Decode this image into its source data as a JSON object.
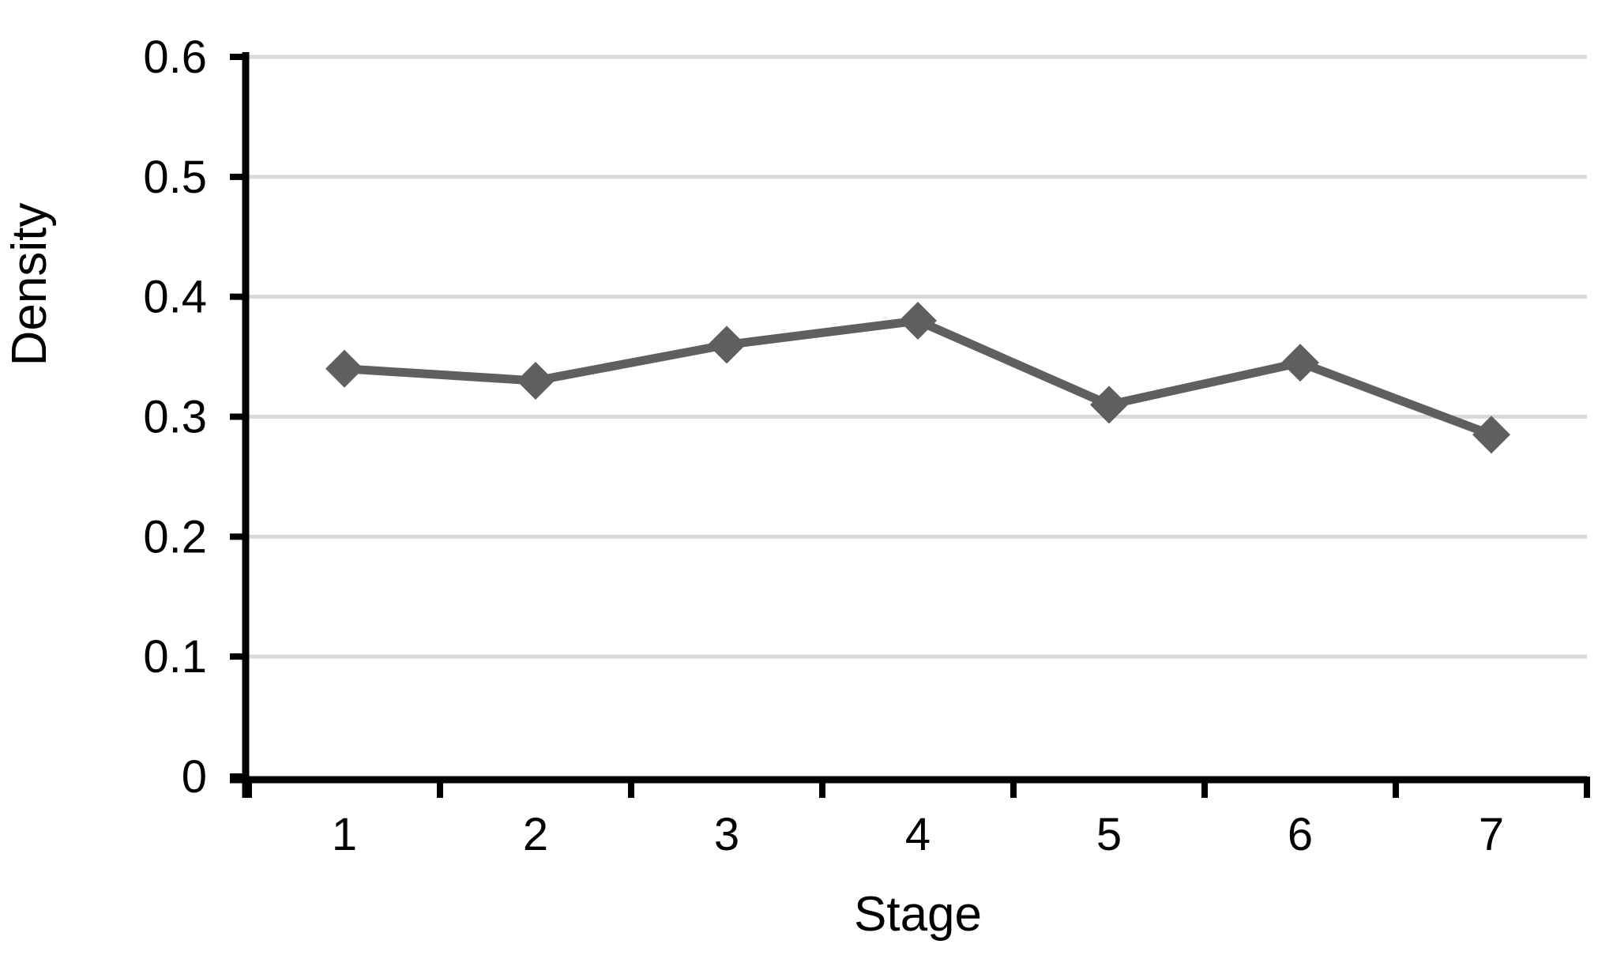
{
  "chart_data": {
    "type": "line",
    "title": "",
    "categories": [
      "1",
      "2",
      "3",
      "4",
      "5",
      "6",
      "7"
    ],
    "series": [
      {
        "name": "Density",
        "values": [
          0.34,
          0.33,
          0.36,
          0.38,
          0.31,
          0.345,
          0.285
        ]
      }
    ],
    "xlabel": "Stage",
    "ylabel": "Density",
    "ylim": [
      0,
      0.6
    ],
    "ytick_step": 0.1,
    "ytick_labels": [
      "0",
      "0.1",
      "0.2",
      "0.3",
      "0.4",
      "0.5",
      "0.6"
    ],
    "grid": true,
    "legend_position": "none",
    "marker_shape": "diamond",
    "colors": {
      "series": "#5F5F5F",
      "gridline": "#D9D9D9",
      "axis": "#000000",
      "text": "#000000",
      "background": "#FFFFFF"
    }
  }
}
